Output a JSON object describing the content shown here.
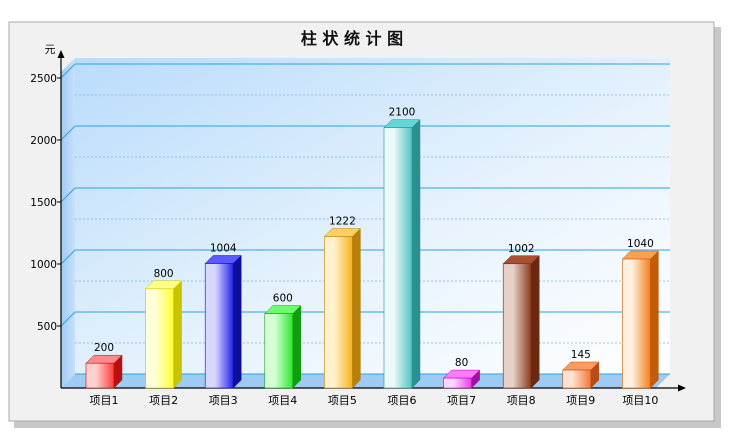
{
  "chart_data": {
    "type": "bar",
    "title": "柱 状 统 计 图",
    "ylabel": "元",
    "xlabel": "",
    "ylim": [
      0,
      2600
    ],
    "yticks": [
      500,
      1000,
      1500,
      2000,
      2500
    ],
    "grid": true,
    "categories": [
      "项目1",
      "项目2",
      "项目3",
      "项目4",
      "项目5",
      "项目6",
      "项目7",
      "项目8",
      "项目9",
      "项目10"
    ],
    "values": [
      200,
      800,
      1004,
      600,
      1222,
      2100,
      80,
      1002,
      145,
      1040
    ],
    "colors": [
      {
        "front": "#ff3b3b",
        "side": "#b80f0f",
        "top": "#ff8a8a",
        "light": "#ffd0d0"
      },
      {
        "front": "#ffff33",
        "side": "#c9c400",
        "top": "#ffff88",
        "light": "#ffffd8"
      },
      {
        "front": "#2525e8",
        "side": "#0f0f9e",
        "top": "#5a5aff",
        "light": "#d8d8ff"
      },
      {
        "front": "#2ee82e",
        "side": "#0e9e0e",
        "top": "#6bff6b",
        "light": "#d6ffd6"
      },
      {
        "front": "#f5b21f",
        "side": "#b9800a",
        "top": "#ffd060",
        "light": "#fff2cc"
      },
      {
        "front": "#52c2c2",
        "side": "#2a8f8f",
        "top": "#63d6d6",
        "light": "#eefafa"
      },
      {
        "front": "#e83be8",
        "side": "#a20fa2",
        "top": "#ff7aff",
        "light": "#ffd6ff"
      },
      {
        "front": "#8b3a1e",
        "side": "#6b2a10",
        "top": "#a85030",
        "light": "#e6d0c8"
      },
      {
        "front": "#f3773a",
        "side": "#b94d12",
        "top": "#ff9a60",
        "light": "#ffe2d0"
      },
      {
        "front": "#f57f1e",
        "side": "#c25c08",
        "top": "#ffa050",
        "light": "#fff0e0"
      }
    ]
  }
}
